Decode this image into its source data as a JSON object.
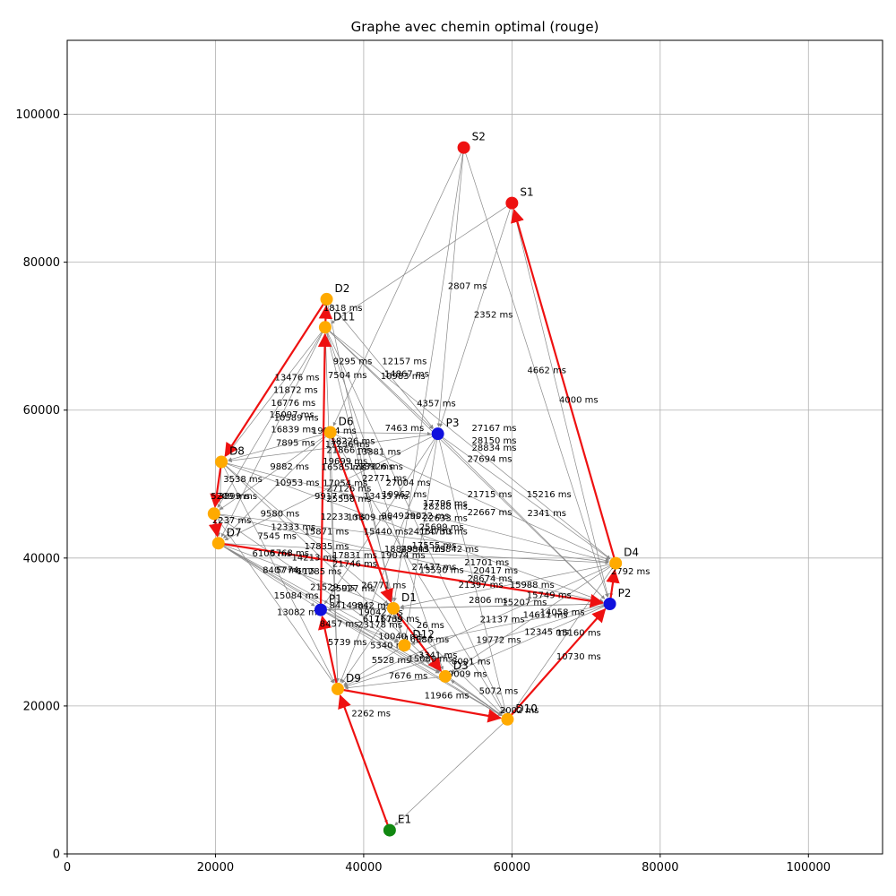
{
  "chart_data": {
    "type": "scatter",
    "title": "Graphe avec chemin optimal (rouge)",
    "xlabel": "",
    "ylabel": "",
    "xlim": [
      0,
      110000
    ],
    "ylim": [
      0,
      110000
    ],
    "xticks": [
      0,
      20000,
      40000,
      60000,
      80000,
      100000
    ],
    "yticks": [
      0,
      20000,
      40000,
      60000,
      80000,
      100000
    ],
    "grid": true,
    "colors": {
      "start": "#ee1111",
      "end": "#118811",
      "depot": "#ffaa00",
      "pickup": "#1010dd",
      "edge": "#888888",
      "path": "#ee1111"
    },
    "nodes": [
      {
        "id": "S1",
        "x": 60000,
        "y": 88000,
        "kind": "start"
      },
      {
        "id": "S2",
        "x": 53500,
        "y": 95500,
        "kind": "start"
      },
      {
        "id": "D2",
        "x": 35000,
        "y": 75000,
        "kind": "depot"
      },
      {
        "id": "D11",
        "x": 34800,
        "y": 71200,
        "kind": "depot"
      },
      {
        "id": "D6",
        "x": 35500,
        "y": 57000,
        "kind": "depot"
      },
      {
        "id": "P3",
        "x": 50000,
        "y": 56800,
        "kind": "pickup"
      },
      {
        "id": "D8",
        "x": 20800,
        "y": 53000,
        "kind": "depot"
      },
      {
        "id": "D5",
        "x": 19800,
        "y": 46000,
        "kind": "depot"
      },
      {
        "id": "D7",
        "x": 20400,
        "y": 42000,
        "kind": "depot"
      },
      {
        "id": "D4",
        "x": 74000,
        "y": 39300,
        "kind": "depot"
      },
      {
        "id": "P2",
        "x": 73200,
        "y": 33800,
        "kind": "pickup"
      },
      {
        "id": "P1",
        "x": 34200,
        "y": 33000,
        "kind": "pickup"
      },
      {
        "id": "D1",
        "x": 44000,
        "y": 33200,
        "kind": "depot"
      },
      {
        "id": "D12",
        "x": 45500,
        "y": 28200,
        "kind": "depot"
      },
      {
        "id": "D3",
        "x": 51000,
        "y": 24000,
        "kind": "depot"
      },
      {
        "id": "D9",
        "x": 36500,
        "y": 22300,
        "kind": "depot"
      },
      {
        "id": "D10",
        "x": 59400,
        "y": 18200,
        "kind": "depot"
      },
      {
        "id": "E1",
        "x": 43500,
        "y": 3200,
        "kind": "end"
      }
    ],
    "labelled_nodes": [
      {
        "id": "S1",
        "text": "S1"
      },
      {
        "id": "S2",
        "text": "S2"
      },
      {
        "id": "D2",
        "text": "D2"
      },
      {
        "id": "D11",
        "text": "D11"
      },
      {
        "id": "D6",
        "text": "D6"
      },
      {
        "id": "P3",
        "text": "P3"
      },
      {
        "id": "D8",
        "text": "D8"
      },
      {
        "id": "D7",
        "text": "D7"
      },
      {
        "id": "D4",
        "text": "D4"
      },
      {
        "id": "P2",
        "text": "P2"
      },
      {
        "id": "P1",
        "text": "P1"
      },
      {
        "id": "D1",
        "text": "D1"
      },
      {
        "id": "D12",
        "text": "D12"
      },
      {
        "id": "D3",
        "text": "D3"
      },
      {
        "id": "D9",
        "text": "D9"
      },
      {
        "id": "D10",
        "text": "D10"
      },
      {
        "id": "E1",
        "text": "E1"
      }
    ],
    "optimal_path": [
      "E1",
      "D9",
      "P1",
      "D11",
      "D2",
      "D8",
      "D5",
      "D7",
      "P2",
      "D4",
      "S1"
    ],
    "optimal_path_extra": [
      [
        "D6",
        "D1"
      ],
      [
        "D1",
        "D3"
      ],
      [
        "D9",
        "D10"
      ],
      [
        "D10",
        "P2"
      ]
    ],
    "edges": [
      [
        "S2",
        "P3",
        "2807 ms"
      ],
      [
        "S1",
        "P3",
        "2352 ms"
      ],
      [
        "S1",
        "P2",
        "4662 ms"
      ],
      [
        "S2",
        "P2",
        "4000 ms"
      ],
      [
        "S2",
        "D1",
        "4357 ms"
      ],
      [
        "S1",
        "D11",
        ""
      ],
      [
        "S2",
        "D6",
        ""
      ],
      [
        "D2",
        "D11",
        "1818 ms"
      ],
      [
        "D11",
        "D8",
        "13476 ms"
      ],
      [
        "D11",
        "D5",
        "11872 ms"
      ],
      [
        "D11",
        "D7",
        "16776 ms"
      ],
      [
        "D11",
        "P3",
        "12157 ms"
      ],
      [
        "D11",
        "D4",
        "9295 ms"
      ],
      [
        "D11",
        "P2",
        "7504 ms"
      ],
      [
        "D11",
        "D9",
        ""
      ],
      [
        "D11",
        "D12",
        ""
      ],
      [
        "D11",
        "D3",
        ""
      ],
      [
        "D11",
        "D10",
        ""
      ],
      [
        "D2",
        "P3",
        "10983 ms"
      ],
      [
        "D2",
        "D1",
        "14867 ms"
      ],
      [
        "D6",
        "D8",
        "16839 ms"
      ],
      [
        "D6",
        "P3",
        "7463 ms"
      ],
      [
        "D6",
        "D5",
        "7895 ms"
      ],
      [
        "D6",
        "D4",
        "27167 ms"
      ],
      [
        "D6",
        "D7",
        ""
      ],
      [
        "D6",
        "D9",
        ""
      ],
      [
        "D6",
        "D10",
        ""
      ],
      [
        "P3",
        "D4",
        "28150 ms"
      ],
      [
        "P3",
        "P2",
        "28834 ms"
      ],
      [
        "P3",
        "D7",
        "27694 ms"
      ],
      [
        "P3",
        "D8",
        "17054 ms"
      ],
      [
        "P3",
        "D9",
        ""
      ],
      [
        "P3",
        "D10",
        ""
      ],
      [
        "P3",
        "D12",
        ""
      ],
      [
        "P3",
        "P1",
        ""
      ],
      [
        "D8",
        "D5",
        "3538 ms"
      ],
      [
        "D8",
        "D7",
        "9882 ms"
      ],
      [
        "D8",
        "D4",
        "21715 ms"
      ],
      [
        "D8",
        "P2",
        "15216 ms"
      ],
      [
        "D8",
        "D9",
        ""
      ],
      [
        "D8",
        "D1",
        ""
      ],
      [
        "D8",
        "D3",
        ""
      ],
      [
        "D5",
        "D7",
        "2237 ms"
      ],
      [
        "D5",
        "D4",
        "22667 ms"
      ],
      [
        "D5",
        "P2",
        "2341 ms"
      ],
      [
        "D5",
        "D9",
        ""
      ],
      [
        "D5",
        "D12",
        ""
      ],
      [
        "D7",
        "P1",
        "7545 ms"
      ],
      [
        "D7",
        "D4",
        "21701 ms"
      ],
      [
        "D7",
        "D1",
        ""
      ],
      [
        "D7",
        "D12",
        ""
      ],
      [
        "D7",
        "D3",
        ""
      ],
      [
        "D7",
        "D10",
        ""
      ],
      [
        "D4",
        "P2",
        "2792 ms"
      ],
      [
        "D4",
        "D1",
        ""
      ],
      [
        "D4",
        "D3",
        ""
      ],
      [
        "D4",
        "D9",
        ""
      ],
      [
        "D4",
        "D10",
        ""
      ],
      [
        "P2",
        "D1",
        "15207 ms"
      ],
      [
        "P2",
        "D12",
        "14058 ms"
      ],
      [
        "P2",
        "D3",
        "12345 ms"
      ],
      [
        "P2",
        "D9",
        "15160 ms"
      ],
      [
        "P2",
        "D10",
        "10730 ms"
      ],
      [
        "P2",
        "P1",
        "21137 ms"
      ],
      [
        "P1",
        "D1",
        "9842 ms"
      ],
      [
        "P1",
        "D12",
        "8457 ms"
      ],
      [
        "P1",
        "D9",
        "13082 ms"
      ],
      [
        "P1",
        "D3",
        "5739 ms"
      ],
      [
        "P1",
        "D10",
        ""
      ],
      [
        "D1",
        "D12",
        "6171 ms"
      ],
      [
        "D1",
        "D3",
        "10040 ms"
      ],
      [
        "D1",
        "D9",
        ""
      ],
      [
        "D1",
        "D10",
        ""
      ],
      [
        "D12",
        "D3",
        "5340 ms"
      ],
      [
        "D12",
        "D9",
        "5528 ms"
      ],
      [
        "D12",
        "D10",
        "5072 ms"
      ],
      [
        "D3",
        "D9",
        "7676 ms"
      ],
      [
        "D3",
        "D10",
        "9009 ms"
      ],
      [
        "D9",
        "D10",
        "11966 ms"
      ],
      [
        "D9",
        "E1",
        "2262 ms"
      ],
      [
        "D10",
        "E1",
        ""
      ],
      [
        "D10",
        "D3",
        "2002 ms"
      ]
    ],
    "floating_labels": [
      {
        "text": "1818 ms",
        "x": 37200,
        "y": 73400
      },
      {
        "text": "9295 ms",
        "x": 38500,
        "y": 66200
      },
      {
        "text": "7504 ms",
        "x": 37800,
        "y": 64300
      },
      {
        "text": "12157 ms",
        "x": 45500,
        "y": 66200
      },
      {
        "text": "14867 ms",
        "x": 45800,
        "y": 64500
      },
      {
        "text": "10983 ms",
        "x": 45300,
        "y": 64200
      },
      {
        "text": "13476 ms",
        "x": 31000,
        "y": 64000
      },
      {
        "text": "11872 ms",
        "x": 30800,
        "y": 62300
      },
      {
        "text": "16776 ms",
        "x": 30500,
        "y": 60600
      },
      {
        "text": "15097 ms",
        "x": 30300,
        "y": 59000
      },
      {
        "text": "10589 ms",
        "x": 30900,
        "y": 58600
      },
      {
        "text": "4357 ms",
        "x": 49800,
        "y": 60500
      },
      {
        "text": "19094 ms",
        "x": 36000,
        "y": 56800
      },
      {
        "text": "16839 ms",
        "x": 30500,
        "y": 57000
      },
      {
        "text": "7463 ms",
        "x": 45500,
        "y": 57200
      },
      {
        "text": "27167 ms",
        "x": 57600,
        "y": 57200
      },
      {
        "text": "7895 ms",
        "x": 30800,
        "y": 55200
      },
      {
        "text": "17236 ms",
        "x": 37800,
        "y": 55000
      },
      {
        "text": "18226 ms",
        "x": 38500,
        "y": 55400
      },
      {
        "text": "21866 ms",
        "x": 38000,
        "y": 54200
      },
      {
        "text": "28150 ms",
        "x": 57600,
        "y": 55500
      },
      {
        "text": "28834 ms",
        "x": 57600,
        "y": 54500
      },
      {
        "text": "13381 ms",
        "x": 42000,
        "y": 54000
      },
      {
        "text": "27694 ms",
        "x": 57000,
        "y": 53000
      },
      {
        "text": "19699 ms",
        "x": 37500,
        "y": 52700
      },
      {
        "text": "16585 ms",
        "x": 37300,
        "y": 51900
      },
      {
        "text": "12770 ms",
        "x": 41000,
        "y": 52000
      },
      {
        "text": "18926 ms",
        "x": 42300,
        "y": 52000
      },
      {
        "text": "9882 ms",
        "x": 30000,
        "y": 52000
      },
      {
        "text": "22771 ms",
        "x": 42800,
        "y": 50400
      },
      {
        "text": "3538 ms",
        "x": 23700,
        "y": 50300
      },
      {
        "text": "10953 ms",
        "x": 31000,
        "y": 49800
      },
      {
        "text": "17054 ms",
        "x": 37500,
        "y": 49700
      },
      {
        "text": "27004 ms",
        "x": 46000,
        "y": 49800
      },
      {
        "text": "27126 ms",
        "x": 38000,
        "y": 49000
      },
      {
        "text": "21715 ms",
        "x": 57000,
        "y": 48200
      },
      {
        "text": "15216 ms",
        "x": 65000,
        "y": 48200
      },
      {
        "text": "9917 ms",
        "x": 36000,
        "y": 48000
      },
      {
        "text": "25530 ms",
        "x": 38000,
        "y": 47600
      },
      {
        "text": "13435 ms",
        "x": 43000,
        "y": 48000
      },
      {
        "text": "19962 ms",
        "x": 45500,
        "y": 48200
      },
      {
        "text": "5209 ms",
        "x": 22000,
        "y": 48000
      },
      {
        "text": "3899 ms",
        "x": 23000,
        "y": 48000
      },
      {
        "text": "17796 ms",
        "x": 51000,
        "y": 47000
      },
      {
        "text": "28288 ms",
        "x": 51000,
        "y": 46600
      },
      {
        "text": "9580 ms",
        "x": 28700,
        "y": 45600
      },
      {
        "text": "12233 ms",
        "x": 37200,
        "y": 45200
      },
      {
        "text": "13309 ms",
        "x": 40800,
        "y": 45100
      },
      {
        "text": "9049 ms",
        "x": 45000,
        "y": 45300
      },
      {
        "text": "29022 ms",
        "x": 48500,
        "y": 45300
      },
      {
        "text": "22667 ms",
        "x": 57000,
        "y": 45800
      },
      {
        "text": "2341 ms",
        "x": 64700,
        "y": 45700
      },
      {
        "text": "22633 ms",
        "x": 51000,
        "y": 45000
      },
      {
        "text": "2237 ms",
        "x": 22200,
        "y": 44700
      },
      {
        "text": "12333 ms",
        "x": 30500,
        "y": 43800
      },
      {
        "text": "15871 ms",
        "x": 35000,
        "y": 43200
      },
      {
        "text": "15440 ms",
        "x": 43000,
        "y": 43200
      },
      {
        "text": "25699 ms",
        "x": 50500,
        "y": 43800
      },
      {
        "text": "24150 ms",
        "x": 49000,
        "y": 43200
      },
      {
        "text": "14730 ms",
        "x": 51000,
        "y": 43200
      },
      {
        "text": "7545 ms",
        "x": 28300,
        "y": 42600
      },
      {
        "text": "17835 ms",
        "x": 35000,
        "y": 41200
      },
      {
        "text": "18849 ms",
        "x": 45800,
        "y": 40800
      },
      {
        "text": "28845 ms",
        "x": 48000,
        "y": 40800
      },
      {
        "text": "17555 ms",
        "x": 49500,
        "y": 41300
      },
      {
        "text": "29842 ms",
        "x": 52500,
        "y": 40800
      },
      {
        "text": "6106 ms",
        "x": 27600,
        "y": 40200
      },
      {
        "text": "5768 ms",
        "x": 30000,
        "y": 40300
      },
      {
        "text": "14213 ms",
        "x": 33300,
        "y": 39700
      },
      {
        "text": "17831 ms",
        "x": 38800,
        "y": 40000
      },
      {
        "text": "19074 ms",
        "x": 45300,
        "y": 40000
      },
      {
        "text": "21701 ms",
        "x": 56600,
        "y": 39000
      },
      {
        "text": "21746 ms",
        "x": 38800,
        "y": 38800
      },
      {
        "text": "27437 ms",
        "x": 49500,
        "y": 38400
      },
      {
        "text": "20417 ms",
        "x": 57800,
        "y": 37900
      },
      {
        "text": "8407 ms",
        "x": 29000,
        "y": 38000
      },
      {
        "text": "5774 ms",
        "x": 30800,
        "y": 38000
      },
      {
        "text": "11285 ms",
        "x": 34000,
        "y": 37800
      },
      {
        "text": "13530 ms",
        "x": 50500,
        "y": 38000
      },
      {
        "text": "28674 ms",
        "x": 57000,
        "y": 36800
      },
      {
        "text": "21397 ms",
        "x": 55800,
        "y": 36000
      },
      {
        "text": "15988 ms",
        "x": 62700,
        "y": 36000
      },
      {
        "text": "26771 ms",
        "x": 42700,
        "y": 35900
      },
      {
        "text": "21529 ms",
        "x": 35800,
        "y": 35700
      },
      {
        "text": "25927 ms",
        "x": 38500,
        "y": 35500
      },
      {
        "text": "15084 ms",
        "x": 30900,
        "y": 34500
      },
      {
        "text": "15749 ms",
        "x": 65000,
        "y": 34600
      },
      {
        "text": "2806 ms",
        "x": 56800,
        "y": 33900
      },
      {
        "text": "15207 ms",
        "x": 61700,
        "y": 33600
      },
      {
        "text": "8414 ms",
        "x": 38000,
        "y": 33200
      },
      {
        "text": "9842 ms",
        "x": 41000,
        "y": 33200
      },
      {
        "text": "13082 ms",
        "x": 31300,
        "y": 32300
      },
      {
        "text": "19042 ms",
        "x": 42300,
        "y": 32300
      },
      {
        "text": "14058 ms",
        "x": 66800,
        "y": 32300
      },
      {
        "text": "14611 ms",
        "x": 64500,
        "y": 31900
      },
      {
        "text": "21137 ms",
        "x": 58700,
        "y": 31300
      },
      {
        "text": "6171 ms",
        "x": 42500,
        "y": 31400
      },
      {
        "text": "16739 ms",
        "x": 44500,
        "y": 31400
      },
      {
        "text": "8457 ms",
        "x": 36700,
        "y": 30700
      },
      {
        "text": "23178 ms",
        "x": 42200,
        "y": 30600
      },
      {
        "text": "26 ms",
        "x": 49000,
        "y": 30500
      },
      {
        "text": "12345 ms",
        "x": 64700,
        "y": 29600
      },
      {
        "text": "15160 ms",
        "x": 69000,
        "y": 29500
      },
      {
        "text": "10040 ms",
        "x": 45000,
        "y": 29000
      },
      {
        "text": "16886 ms",
        "x": 48500,
        "y": 28600
      },
      {
        "text": "19772 ms",
        "x": 58200,
        "y": 28500
      },
      {
        "text": "5739 ms",
        "x": 37800,
        "y": 28200
      },
      {
        "text": "5340 ms",
        "x": 43500,
        "y": 27800
      },
      {
        "text": "3341 ms",
        "x": 50000,
        "y": 26500
      },
      {
        "text": "10730 ms",
        "x": 69000,
        "y": 26300
      },
      {
        "text": "5528 ms",
        "x": 43700,
        "y": 25800
      },
      {
        "text": "15089 ms",
        "x": 49000,
        "y": 26000
      },
      {
        "text": "8001 ms",
        "x": 54500,
        "y": 25600
      },
      {
        "text": "9009 ms",
        "x": 54000,
        "y": 23900
      },
      {
        "text": "7676 ms",
        "x": 46000,
        "y": 23700
      },
      {
        "text": "5072 ms",
        "x": 58200,
        "y": 21600
      },
      {
        "text": "11966 ms",
        "x": 51200,
        "y": 21000
      },
      {
        "text": "2002 ms",
        "x": 61000,
        "y": 19000
      },
      {
        "text": "2262 ms",
        "x": 41000,
        "y": 18600
      },
      {
        "text": "2807 ms",
        "x": 54000,
        "y": 76400
      },
      {
        "text": "2352 ms",
        "x": 57500,
        "y": 72500
      },
      {
        "text": "4662 ms",
        "x": 64700,
        "y": 65000
      },
      {
        "text": "4000 ms",
        "x": 69000,
        "y": 61000
      },
      {
        "text": "2792 ms",
        "x": 76000,
        "y": 37800
      }
    ]
  }
}
